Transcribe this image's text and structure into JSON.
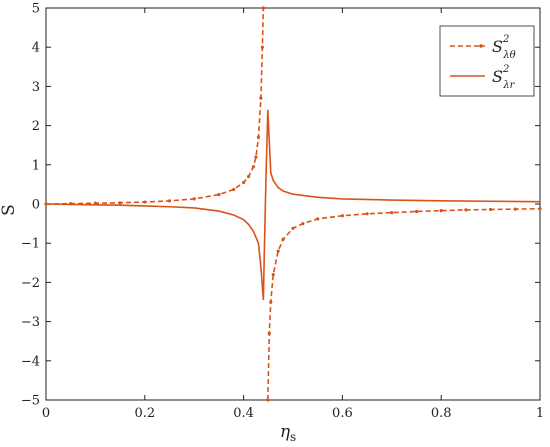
{
  "chart_data": {
    "type": "line",
    "xlabel": "η",
    "xlabel_sub": "s",
    "ylabel": "S",
    "xlim": [
      0,
      1
    ],
    "ylim": [
      -5,
      5
    ],
    "x_ticks": [
      0,
      0.2,
      0.4,
      0.6,
      0.8,
      1
    ],
    "x_tick_labels": [
      "0",
      "0.2",
      "0.4",
      "0.6",
      "0.8",
      "1"
    ],
    "y_ticks": [
      -5,
      -4,
      -3,
      -2,
      -1,
      0,
      1,
      2,
      3,
      4,
      5
    ],
    "y_tick_labels": [
      "−5",
      "−4",
      "−3",
      "−2",
      "−1",
      "0",
      "1",
      "2",
      "3",
      "4",
      "5"
    ],
    "grid": false,
    "legend_position": "top-right",
    "series": [
      {
        "name": "S",
        "name_sup": "2",
        "name_sub": "λθ",
        "style": "dashed-markers",
        "color": "#d95319",
        "points": [
          [
            0,
            0.0
          ],
          [
            0.05,
            0.01
          ],
          [
            0.1,
            0.02
          ],
          [
            0.15,
            0.03
          ],
          [
            0.2,
            0.05
          ],
          [
            0.25,
            0.08
          ],
          [
            0.3,
            0.13
          ],
          [
            0.35,
            0.24
          ],
          [
            0.38,
            0.37
          ],
          [
            0.4,
            0.55
          ],
          [
            0.41,
            0.7
          ],
          [
            0.42,
            0.95
          ],
          [
            0.425,
            1.2
          ],
          [
            0.43,
            1.7
          ],
          [
            0.435,
            2.7
          ],
          [
            0.438,
            4.0
          ],
          [
            0.44,
            5.0
          ],
          [
            null,
            null
          ],
          [
            0.449,
            -5.0
          ],
          [
            0.452,
            -3.3
          ],
          [
            0.455,
            -2.5
          ],
          [
            0.46,
            -1.8
          ],
          [
            0.47,
            -1.2
          ],
          [
            0.48,
            -0.9
          ],
          [
            0.5,
            -0.62
          ],
          [
            0.52,
            -0.5
          ],
          [
            0.55,
            -0.38
          ],
          [
            0.6,
            -0.3
          ],
          [
            0.65,
            -0.25
          ],
          [
            0.7,
            -0.22
          ],
          [
            0.75,
            -0.19
          ],
          [
            0.8,
            -0.17
          ],
          [
            0.85,
            -0.15
          ],
          [
            0.9,
            -0.14
          ],
          [
            0.95,
            -0.13
          ],
          [
            1.0,
            -0.12
          ]
        ]
      },
      {
        "name": "S",
        "name_sup": "2",
        "name_sub": "λr",
        "style": "solid",
        "color": "#d95319",
        "points": [
          [
            0,
            0.0
          ],
          [
            0.05,
            -0.01
          ],
          [
            0.1,
            -0.02
          ],
          [
            0.15,
            -0.03
          ],
          [
            0.2,
            -0.05
          ],
          [
            0.25,
            -0.07
          ],
          [
            0.3,
            -0.1
          ],
          [
            0.35,
            -0.18
          ],
          [
            0.38,
            -0.28
          ],
          [
            0.4,
            -0.4
          ],
          [
            0.41,
            -0.52
          ],
          [
            0.42,
            -0.7
          ],
          [
            0.43,
            -1.0
          ],
          [
            0.435,
            -1.6
          ],
          [
            0.44,
            -2.45
          ],
          [
            0.442,
            -1.2
          ],
          [
            0.445,
            0.5
          ],
          [
            0.449,
            2.4
          ],
          [
            0.452,
            1.6
          ],
          [
            0.455,
            0.8
          ],
          [
            0.46,
            0.6
          ],
          [
            0.47,
            0.42
          ],
          [
            0.48,
            0.33
          ],
          [
            0.5,
            0.25
          ],
          [
            0.55,
            0.17
          ],
          [
            0.6,
            0.13
          ],
          [
            0.7,
            0.1
          ],
          [
            0.8,
            0.08
          ],
          [
            0.9,
            0.07
          ],
          [
            1.0,
            0.06
          ]
        ]
      }
    ]
  }
}
